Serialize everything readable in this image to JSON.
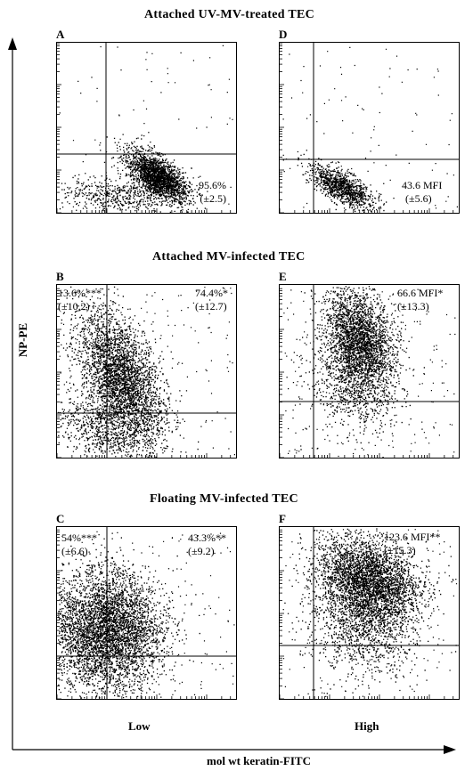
{
  "titles": {
    "row1": "Attached UV-MV-treated TEC",
    "row2": "Attached MV-infected TEC",
    "row3": "Floating MV-infected TEC"
  },
  "axes": {
    "ylabel": "NP-PE",
    "xlabel": "mol wt keratin-FITC",
    "col_low": "Low",
    "col_high": "High"
  },
  "colors": {
    "dots": "#000000",
    "background": "#ffffff"
  },
  "chart_data": [
    {
      "type": "scatter",
      "panel": "A",
      "stats": [
        {
          "value": "95.6%",
          "sd": "(±2.5)",
          "quadrant": "lower-right"
        }
      ]
    },
    {
      "type": "scatter",
      "panel": "B",
      "stats": [
        {
          "value": "13.6%***",
          "sd": "(±10.2)",
          "quadrant": "upper-left"
        },
        {
          "value": "74.4%*",
          "sd": "(±12.7)",
          "quadrant": "upper-right"
        }
      ]
    },
    {
      "type": "scatter",
      "panel": "C",
      "stats": [
        {
          "value": "54%***",
          "sd": "(±6.6)",
          "quadrant": "upper-left"
        },
        {
          "value": "43.3%**",
          "sd": "(±9.2)",
          "quadrant": "upper-right"
        }
      ]
    },
    {
      "type": "scatter",
      "panel": "D",
      "stats": [
        {
          "value": "43.6 MFI",
          "sd": "(±5.6)",
          "quadrant": "lower-right"
        }
      ]
    },
    {
      "type": "scatter",
      "panel": "E",
      "stats": [
        {
          "value": "66.6 MFI*",
          "sd": "(±13.3)",
          "quadrant": "upper-right"
        }
      ]
    },
    {
      "type": "scatter",
      "panel": "F",
      "stats": [
        {
          "value": "123.6 MFI**",
          "sd": "(±15.3)",
          "quadrant": "upper-right"
        }
      ]
    }
  ]
}
